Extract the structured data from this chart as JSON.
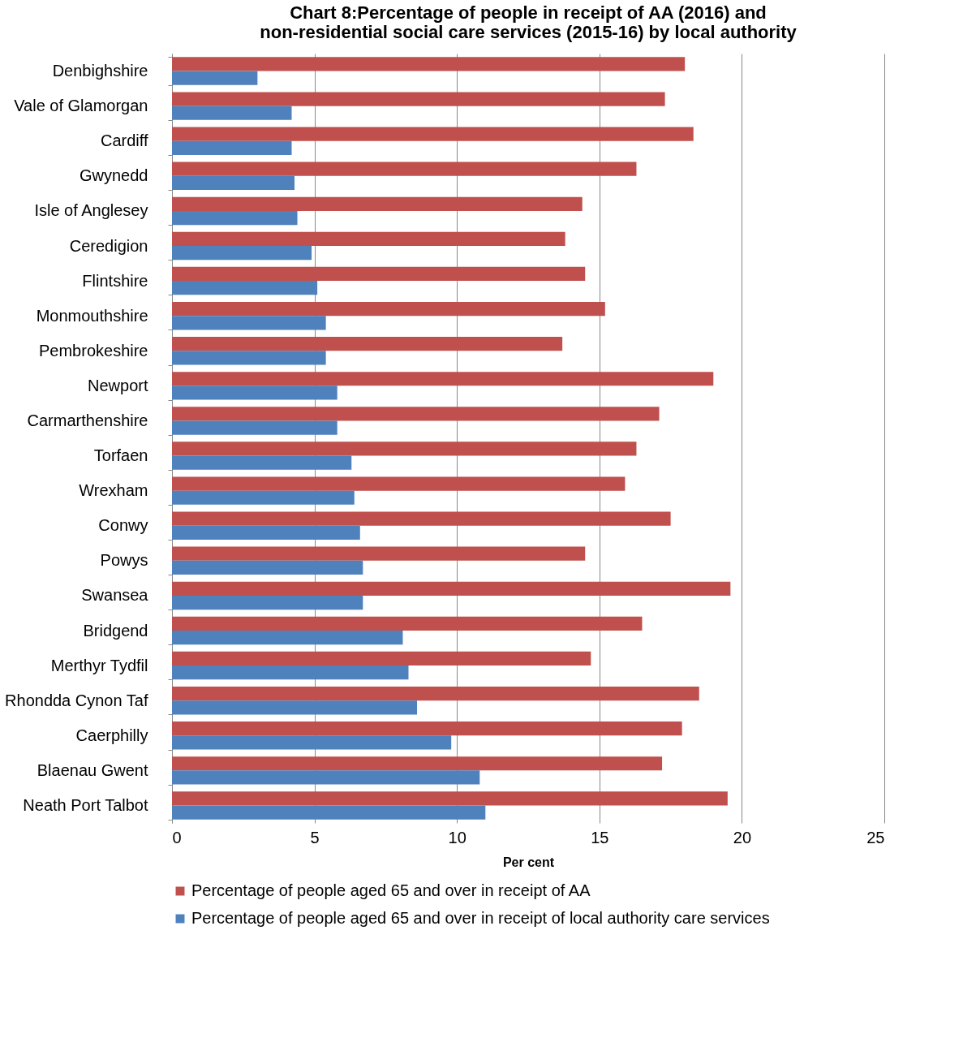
{
  "chart_data": {
    "type": "bar",
    "orientation": "horizontal",
    "title": "Chart 8:Percentage of people in receipt of AA (2016) and  non-residential social care services (2015-16) by local authority",
    "xlabel": "Per cent",
    "categories": [
      "Denbighshire",
      "Vale of Glamorgan",
      "Cardiff",
      "Gwynedd",
      "Isle of Anglesey",
      "Ceredigion",
      "Flintshire",
      "Monmouthshire",
      "Pembrokeshire",
      "Newport",
      "Carmarthenshire",
      "Torfaen",
      "Wrexham",
      "Conwy",
      "Powys",
      "Swansea",
      "Bridgend",
      "Merthyr Tydfil",
      "Rhondda Cynon Taf",
      "Caerphilly",
      "Blaenau Gwent",
      "Neath Port Talbot"
    ],
    "series": [
      {
        "name": "Percentage of people aged 65 and over in receipt of AA",
        "color": "#c0504d",
        "values": [
          18.0,
          17.3,
          18.3,
          16.3,
          14.4,
          13.8,
          14.5,
          15.2,
          13.7,
          19.0,
          17.1,
          16.3,
          15.9,
          17.5,
          14.5,
          19.6,
          16.5,
          14.7,
          18.5,
          17.9,
          17.2,
          19.5
        ]
      },
      {
        "name": "Percentage of people aged 65 and over in receipt of local authority care services",
        "color": "#4f81bd",
        "values": [
          3.0,
          4.2,
          4.2,
          4.3,
          4.4,
          4.9,
          5.1,
          5.4,
          5.4,
          5.8,
          5.8,
          6.3,
          6.4,
          6.6,
          6.7,
          6.7,
          8.1,
          8.3,
          8.6,
          9.8,
          10.8,
          11.0
        ]
      }
    ],
    "xlim": [
      0,
      25
    ],
    "xticks": [
      0,
      5,
      10,
      15,
      20,
      25
    ],
    "grid": "x",
    "legend": "bottom"
  }
}
